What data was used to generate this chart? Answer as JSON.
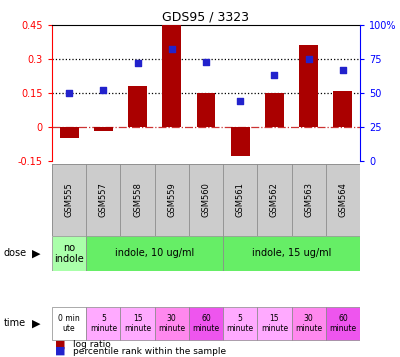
{
  "title": "GDS95 / 3323",
  "samples": [
    "GSM555",
    "GSM557",
    "GSM558",
    "GSM559",
    "GSM560",
    "GSM561",
    "GSM562",
    "GSM563",
    "GSM564"
  ],
  "log_ratio": [
    -0.05,
    -0.02,
    0.18,
    0.46,
    0.15,
    -0.13,
    0.15,
    0.36,
    0.16
  ],
  "percentile": [
    50,
    52,
    72,
    82,
    73,
    44,
    63,
    75,
    67
  ],
  "ylim_left": [
    -0.15,
    0.45
  ],
  "ylim_right": [
    0,
    100
  ],
  "yticks_left": [
    -0.15,
    0,
    0.15,
    0.3,
    0.45
  ],
  "yticks_right": [
    0,
    25,
    50,
    75,
    100
  ],
  "ytick_labels_left": [
    "-0.15",
    "0",
    "0.15",
    "0.3",
    "0.45"
  ],
  "ytick_labels_right": [
    "0",
    "25",
    "50",
    "75",
    "100%"
  ],
  "hlines": [
    0.15,
    0.3
  ],
  "bar_color": "#aa0000",
  "dot_color": "#2222cc",
  "zero_line_color": "#cc3333",
  "hline_color": "#000000",
  "dose_labels": [
    "no\nindole",
    "indole, 10 ug/ml",
    "indole, 15 ug/ml"
  ],
  "dose_colors": [
    "#aaffaa",
    "#66ee66",
    "#66ee66"
  ],
  "time_labels": [
    "0 min\nute",
    "5\nminute",
    "15\nminute",
    "30\nminute",
    "60\nminute",
    "5\nminute",
    "15\nminute",
    "30\nminute",
    "60\nminute"
  ],
  "time_colors": [
    "#ffffff",
    "#ffaaff",
    "#ffaaff",
    "#ff88ee",
    "#ee55ee",
    "#ffaaff",
    "#ffaaff",
    "#ff88ee",
    "#ee55ee"
  ],
  "bar_width": 0.55,
  "sample_bg": "#cccccc"
}
